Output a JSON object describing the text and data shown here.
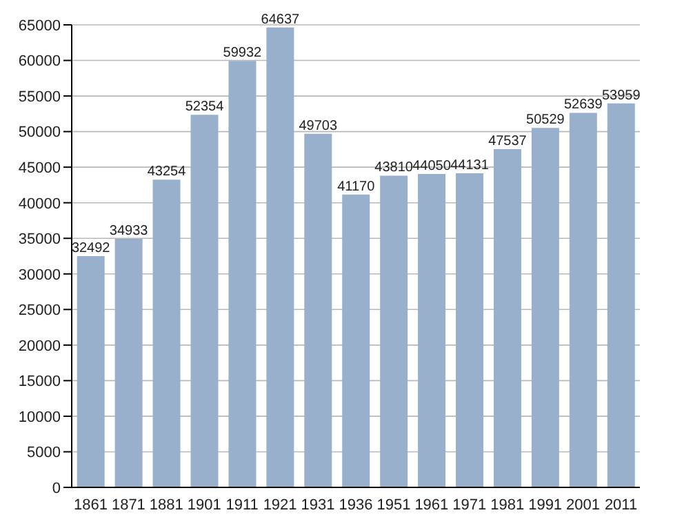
{
  "chart_data": {
    "type": "bar",
    "categories": [
      "1861",
      "1871",
      "1881",
      "1901",
      "1911",
      "1921",
      "1931",
      "1936",
      "1951",
      "1961",
      "1971",
      "1981",
      "1991",
      "2001",
      "2011"
    ],
    "values": [
      32492,
      34933,
      43254,
      52354,
      59932,
      64637,
      49703,
      41170,
      43810,
      44050,
      44131,
      47537,
      50529,
      52639,
      53959
    ],
    "color": "#98b0cc",
    "data_labels": true,
    "ylim": [
      0,
      65000
    ],
    "yticks": [
      0,
      5000,
      10000,
      15000,
      20000,
      25000,
      30000,
      35000,
      40000,
      45000,
      50000,
      55000,
      60000,
      65000
    ],
    "grid": "y"
  }
}
